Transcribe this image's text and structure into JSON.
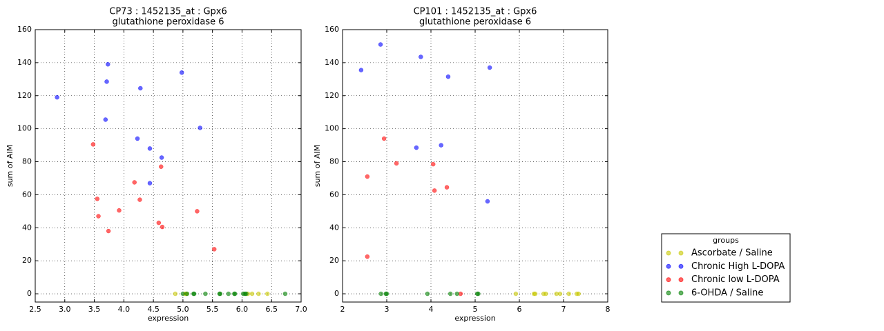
{
  "chart_data": [
    {
      "type": "scatter",
      "title": "CP73 : 1452135_at : Gpx6",
      "subtitle": "glutathione peroxidase 6",
      "x_label": "expression",
      "y_label": "sum of AIM",
      "xlim": [
        2.5,
        7.0
      ],
      "ylim": [
        -5,
        160
      ],
      "xticks": [
        2.5,
        {
          "value": 3,
          "label": "3.0"
        },
        3.5,
        {
          "value": 4,
          "label": "4.0"
        },
        4.5,
        {
          "value": 5,
          "label": "5.0"
        },
        5.5,
        {
          "value": 6,
          "label": "6.0"
        },
        6.5,
        {
          "value": 7,
          "label": "7.0"
        }
      ],
      "yticks": [
        0,
        20,
        40,
        60,
        80,
        100,
        120,
        140,
        160
      ],
      "grid": true,
      "series": [
        {
          "color": "#c8c800",
          "x": [
            4.87,
            5.04,
            5.06,
            6.1,
            6.17,
            6.28,
            6.43
          ],
          "values": [
            0,
            0,
            0,
            0,
            0,
            0,
            0
          ]
        },
        {
          "color": "#0000ff",
          "x": [
            2.87,
            3.73,
            3.71,
            3.69,
            4.28,
            4.98,
            5.29,
            4.23,
            4.44,
            4.64,
            4.44
          ],
          "values": [
            119,
            139,
            128.5,
            105.5,
            124.5,
            134,
            100.5,
            94,
            88,
            82.5,
            67
          ]
        },
        {
          "color": "#ff0000",
          "x": [
            3.48,
            3.55,
            3.57,
            3.74,
            3.92,
            4.18,
            4.27,
            4.63,
            4.59,
            4.65,
            5.24,
            5.53
          ],
          "values": [
            90.5,
            57.5,
            47,
            38,
            50.5,
            67.5,
            57,
            77,
            43,
            40.5,
            50,
            27
          ]
        },
        {
          "color": "#008000",
          "x": [
            5.0,
            5.07,
            5.18,
            5.19,
            5.38,
            5.62,
            5.63,
            5.77,
            5.87,
            5.88,
            6.02,
            6.05,
            6.07,
            6.73
          ],
          "values": [
            0,
            0,
            0,
            0,
            0,
            0,
            0,
            0,
            0,
            0,
            0,
            0,
            0,
            0
          ]
        }
      ]
    },
    {
      "type": "scatter",
      "title": "CP101 : 1452135_at : Gpx6",
      "subtitle": "glutathione peroxidase 6",
      "x_label": "expression",
      "y_label": "sum of AIM",
      "xlim": [
        2,
        8
      ],
      "ylim": [
        -5,
        160
      ],
      "xticks": [
        2,
        3,
        4,
        5,
        6,
        7,
        8
      ],
      "yticks": [
        0,
        20,
        40,
        60,
        80,
        100,
        120,
        140,
        160
      ],
      "grid": true,
      "legend": "right",
      "legend_title": "groups",
      "series": [
        {
          "name": "Ascorbate / Saline",
          "color": "#c8c800",
          "x": [
            5.92,
            6.33,
            6.36,
            6.55,
            6.6,
            6.84,
            6.92,
            7.12,
            7.3,
            7.34
          ],
          "values": [
            0,
            0,
            0,
            0,
            0,
            0,
            0,
            0,
            0,
            0
          ]
        },
        {
          "name": "Chronic High L-DOPA",
          "color": "#0000ff",
          "x": [
            2.42,
            2.86,
            3.77,
            4.39,
            5.33,
            3.67,
            4.23,
            5.28
          ],
          "values": [
            135.5,
            151,
            143.5,
            131.5,
            137,
            88.5,
            90,
            56
          ]
        },
        {
          "name": "Chronic low L-DOPA",
          "color": "#ff0000",
          "x": [
            2.56,
            2.94,
            3.22,
            4.05,
            4.08,
            4.36,
            2.56,
            4.67
          ],
          "values": [
            71,
            94,
            79,
            78.5,
            62.5,
            64.5,
            22.5,
            0
          ]
        },
        {
          "name": "6-OHDA / Saline",
          "color": "#008000",
          "x": [
            2.87,
            2.98,
            3.0,
            3.92,
            4.44,
            4.59,
            5.05,
            5.07
          ],
          "values": [
            0,
            0,
            0,
            0,
            0,
            0,
            0,
            0
          ]
        }
      ]
    }
  ]
}
